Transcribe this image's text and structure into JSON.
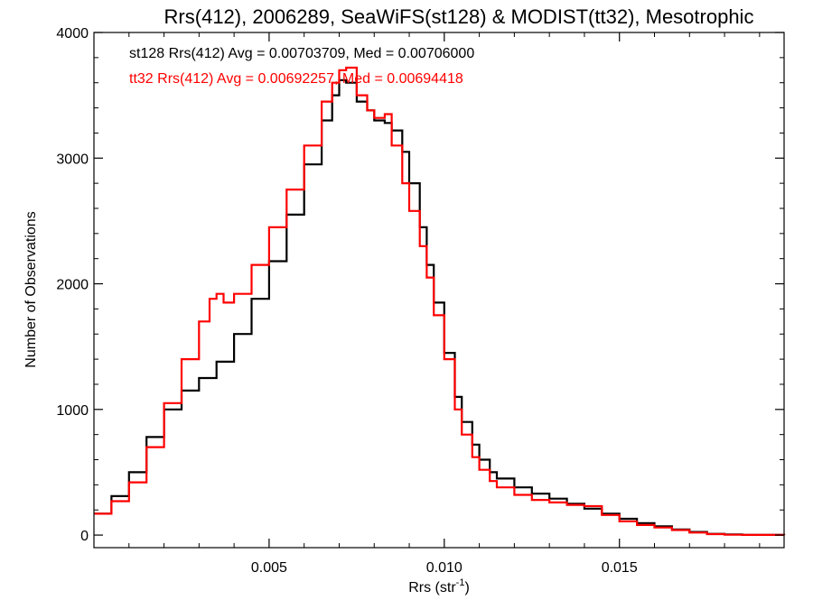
{
  "chart_data": {
    "type": "line",
    "style": "step",
    "title": "Rrs(412), 2006289, SeaWiFS(st128) & MODIST(tt32), Mesotrophic",
    "xlabel_main": "Rrs (str",
    "xlabel_sup": "-1",
    "xlabel_close": ")",
    "ylabel": "Number of Observations",
    "xlim": [
      0.0,
      0.0197
    ],
    "ylim": [
      -100,
      4000
    ],
    "xticks": [
      0.005,
      0.01,
      0.015
    ],
    "xtick_labels": [
      "0.005",
      "0.010",
      "0.015"
    ],
    "yticks": [
      0,
      1000,
      2000,
      3000,
      4000
    ],
    "ytick_labels": [
      "0",
      "1000",
      "2000",
      "3000",
      "4000"
    ],
    "grid": false,
    "annotations": [
      {
        "text": "st128 Rrs(412) Avg = 0.00703709, Med = 0.00706000",
        "color": "#000000"
      },
      {
        "text": "tt32 Rrs(412) Avg = 0.00692257, Med = 0.00694418",
        "color": "#ff0000"
      }
    ],
    "series": [
      {
        "color": "#000000",
        "points": [
          [
            0.0,
            170
          ],
          [
            0.0005,
            310
          ],
          [
            0.001,
            500
          ],
          [
            0.0015,
            780
          ],
          [
            0.002,
            1000
          ],
          [
            0.0025,
            1150
          ],
          [
            0.003,
            1250
          ],
          [
            0.0035,
            1380
          ],
          [
            0.004,
            1600
          ],
          [
            0.0045,
            1880
          ],
          [
            0.005,
            2180
          ],
          [
            0.0055,
            2550
          ],
          [
            0.006,
            2950
          ],
          [
            0.0065,
            3300
          ],
          [
            0.0068,
            3500
          ],
          [
            0.007,
            3620
          ],
          [
            0.0072,
            3600
          ],
          [
            0.0075,
            3450
          ],
          [
            0.0078,
            3380
          ],
          [
            0.008,
            3300
          ],
          [
            0.0083,
            3280
          ],
          [
            0.0085,
            3220
          ],
          [
            0.0088,
            3050
          ],
          [
            0.009,
            2800
          ],
          [
            0.0093,
            2450
          ],
          [
            0.0095,
            2150
          ],
          [
            0.0097,
            1850
          ],
          [
            0.01,
            1450
          ],
          [
            0.0103,
            1100
          ],
          [
            0.0105,
            900
          ],
          [
            0.0108,
            720
          ],
          [
            0.011,
            600
          ],
          [
            0.0113,
            500
          ],
          [
            0.0115,
            450
          ],
          [
            0.012,
            380
          ],
          [
            0.0125,
            330
          ],
          [
            0.013,
            290
          ],
          [
            0.0135,
            250
          ],
          [
            0.014,
            210
          ],
          [
            0.0145,
            170
          ],
          [
            0.015,
            130
          ],
          [
            0.0155,
            95
          ],
          [
            0.016,
            70
          ],
          [
            0.0165,
            45
          ],
          [
            0.017,
            25
          ],
          [
            0.0175,
            10
          ],
          [
            0.018,
            5
          ],
          [
            0.0185,
            2
          ],
          [
            0.019,
            1
          ],
          [
            0.0197,
            0
          ]
        ]
      },
      {
        "color": "#ff0000",
        "points": [
          [
            0.0,
            170
          ],
          [
            0.0005,
            270
          ],
          [
            0.001,
            420
          ],
          [
            0.0015,
            700
          ],
          [
            0.002,
            1050
          ],
          [
            0.0025,
            1400
          ],
          [
            0.003,
            1700
          ],
          [
            0.0033,
            1880
          ],
          [
            0.0035,
            1920
          ],
          [
            0.0037,
            1850
          ],
          [
            0.004,
            1920
          ],
          [
            0.0045,
            2150
          ],
          [
            0.005,
            2450
          ],
          [
            0.0055,
            2750
          ],
          [
            0.006,
            3100
          ],
          [
            0.0065,
            3450
          ],
          [
            0.0068,
            3600
          ],
          [
            0.007,
            3700
          ],
          [
            0.0072,
            3720
          ],
          [
            0.0075,
            3500
          ],
          [
            0.0078,
            3380
          ],
          [
            0.008,
            3320
          ],
          [
            0.0083,
            3350
          ],
          [
            0.0085,
            3100
          ],
          [
            0.0088,
            2800
          ],
          [
            0.009,
            2580
          ],
          [
            0.0093,
            2300
          ],
          [
            0.0095,
            2050
          ],
          [
            0.0097,
            1750
          ],
          [
            0.01,
            1400
          ],
          [
            0.0103,
            1000
          ],
          [
            0.0105,
            800
          ],
          [
            0.0108,
            620
          ],
          [
            0.011,
            520
          ],
          [
            0.0113,
            430
          ],
          [
            0.0115,
            380
          ],
          [
            0.012,
            320
          ],
          [
            0.0125,
            280
          ],
          [
            0.013,
            260
          ],
          [
            0.0135,
            240
          ],
          [
            0.014,
            230
          ],
          [
            0.0145,
            160
          ],
          [
            0.015,
            110
          ],
          [
            0.0155,
            80
          ],
          [
            0.016,
            60
          ],
          [
            0.0165,
            40
          ],
          [
            0.017,
            20
          ],
          [
            0.0175,
            8
          ],
          [
            0.018,
            3
          ],
          [
            0.0185,
            1
          ],
          [
            0.0197,
            0
          ]
        ]
      }
    ]
  }
}
